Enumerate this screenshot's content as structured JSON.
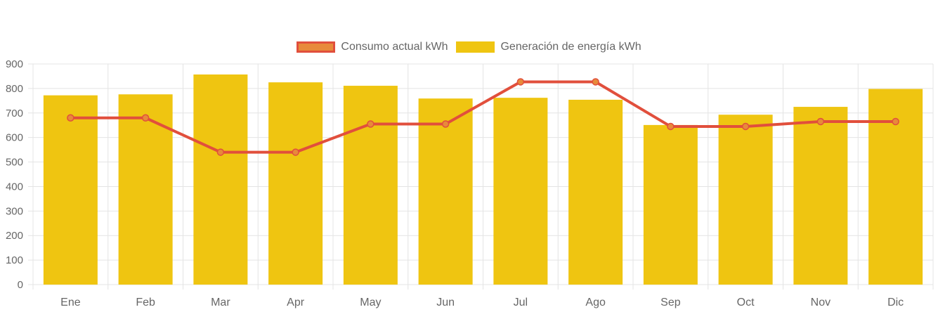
{
  "chart_data": {
    "type": "bar",
    "categories": [
      "Ene",
      "Feb",
      "Mar",
      "Apr",
      "May",
      "Jun",
      "Jul",
      "Ago",
      "Sep",
      "Oct",
      "Nov",
      "Dic"
    ],
    "series": [
      {
        "name": "Generación de energía kWh",
        "type": "bar",
        "values": [
          772,
          776,
          857,
          825,
          811,
          759,
          762,
          754,
          651,
          693,
          725,
          798
        ],
        "color": "#efc511"
      },
      {
        "name": "Consumo actual kWh",
        "type": "line",
        "values": [
          680,
          680,
          540,
          540,
          655,
          655,
          827,
          827,
          645,
          645,
          665,
          665
        ],
        "color": "#e14f3c",
        "point_fill": "#e88a3a"
      }
    ],
    "ylim": [
      0,
      900
    ],
    "yticks": [
      0,
      100,
      200,
      300,
      400,
      500,
      600,
      700,
      800,
      900
    ],
    "grid": true,
    "legend": "top-center",
    "title": "",
    "xlabel": "",
    "ylabel": ""
  },
  "legend": {
    "consumo_label": "Consumo actual kWh",
    "generacion_label": "Generación de energía kWh"
  }
}
